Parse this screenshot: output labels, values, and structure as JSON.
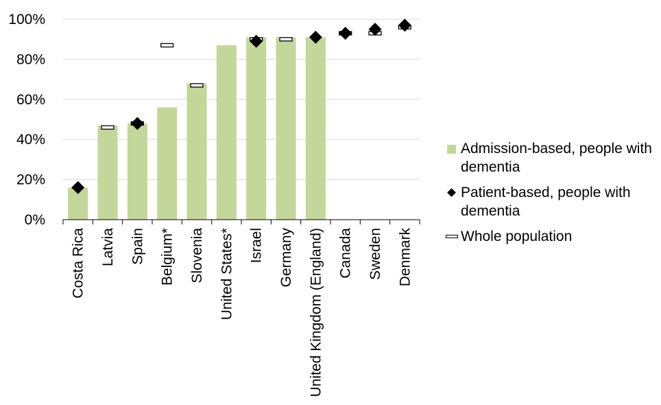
{
  "chart_data": {
    "type": "bar",
    "title": "",
    "xlabel": "",
    "ylabel": "",
    "ylim": [
      0,
      100
    ],
    "yticks": [
      0,
      20,
      40,
      60,
      80,
      100
    ],
    "ytick_labels": [
      "0%",
      "20%",
      "40%",
      "60%",
      "80%",
      "100%"
    ],
    "grid": "horizontal",
    "legend_position": "right",
    "categories": [
      "Costa Rica",
      "Latvia",
      "Spain",
      "Belgium*",
      "Slovenia",
      "United States*",
      "Israel",
      "Germany",
      "United Kingdom (England)",
      "Canada",
      "Sweden",
      "Denmark"
    ],
    "series": [
      {
        "name": "Admission-based, people with dementia",
        "kind": "bar",
        "color": "#c4d79b",
        "values": [
          16,
          47,
          48,
          56,
          68,
          87,
          91,
          91,
          91,
          null,
          null,
          null
        ]
      },
      {
        "name": "Patient-based, people with dementia",
        "kind": "diamond",
        "color": "#000000",
        "values": [
          16,
          null,
          48,
          null,
          null,
          null,
          89,
          null,
          91,
          93,
          95,
          97
        ]
      },
      {
        "name": "Whole population",
        "kind": "dash",
        "color": "#ffffff",
        "values": [
          null,
          46,
          48,
          87,
          67,
          null,
          90,
          90,
          null,
          93,
          93,
          96
        ]
      }
    ]
  }
}
